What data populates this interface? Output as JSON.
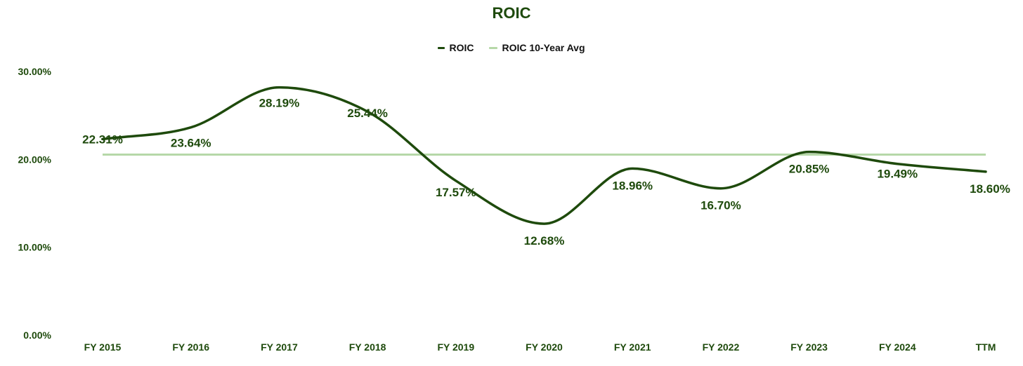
{
  "colors": {
    "primary": "#1e4a0c",
    "average": "#b6d8a8",
    "text": "#1e4a0c"
  },
  "chart_data": {
    "type": "line",
    "title": "ROIC",
    "categories": [
      "FY 2015",
      "FY 2016",
      "FY 2017",
      "FY 2018",
      "FY 2019",
      "FY 2020",
      "FY 2021",
      "FY 2022",
      "FY 2023",
      "FY 2024",
      "TTM"
    ],
    "series": [
      {
        "name": "ROIC",
        "values": [
          22.31,
          23.64,
          28.19,
          25.44,
          17.57,
          12.68,
          18.96,
          16.7,
          20.85,
          19.49,
          18.6
        ],
        "labels": [
          "22.31%",
          "23.64%",
          "28.19%",
          "25.44%",
          "17.57%",
          "12.68%",
          "18.96%",
          "16.70%",
          "20.85%",
          "19.49%",
          "18.60%"
        ]
      },
      {
        "name": "ROIC 10-Year Avg",
        "values": [
          20.55,
          20.55,
          20.55,
          20.55,
          20.55,
          20.55,
          20.55,
          20.55,
          20.55,
          20.55,
          20.55
        ]
      }
    ],
    "ylim": [
      0,
      30
    ],
    "yticks": [
      0,
      10,
      20,
      30
    ],
    "ytick_labels": [
      "0.00%",
      "10.00%",
      "20.00%",
      "30.00%"
    ],
    "xlabel": "",
    "ylabel": "",
    "legend": "top-center",
    "grid": false
  }
}
